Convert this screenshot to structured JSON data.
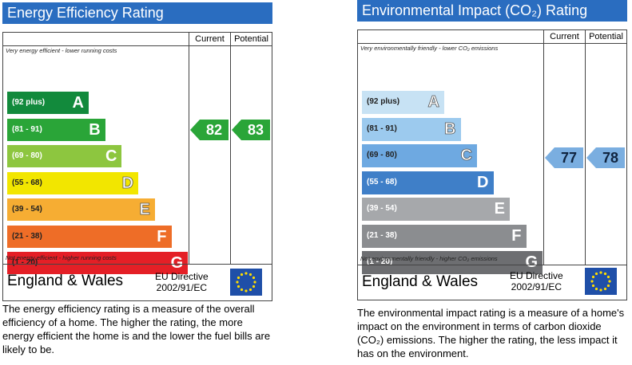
{
  "chart_data": [
    {
      "type": "bar",
      "title": "Energy Efficiency Rating",
      "column_headers": [
        "Current",
        "Potential"
      ],
      "top_note": "Very energy efficient - lower running costs",
      "bottom_note": "Not energy efficient - higher running costs",
      "bands": [
        {
          "range": "(92 plus)",
          "letter": "A",
          "color": "#128a3c"
        },
        {
          "range": "(81 - 91)",
          "letter": "B",
          "color": "#2aa538"
        },
        {
          "range": "(69 - 80)",
          "letter": "C",
          "color": "#8dc63f"
        },
        {
          "range": "(55 - 68)",
          "letter": "D",
          "color": "#f2e600"
        },
        {
          "range": "(39 - 54)",
          "letter": "E",
          "color": "#f6ad33"
        },
        {
          "range": "(21 - 38)",
          "letter": "F",
          "color": "#ee6d27"
        },
        {
          "range": "(1 - 20)",
          "letter": "G",
          "color": "#e41f26"
        }
      ],
      "current": {
        "value": "82",
        "band": "B",
        "color": "#2aa538"
      },
      "potential": {
        "value": "83",
        "band": "B",
        "color": "#2aa538"
      },
      "footer": {
        "country": "England & Wales",
        "directive_line1": "EU Directive",
        "directive_line2": "2002/91/EC"
      },
      "description": "The energy efficiency rating is a measure of the overall efficiency of a home. The higher the rating, the more energy efficient the home is and the lower the fuel bills are likely to be."
    },
    {
      "type": "bar",
      "title": "Environmental Impact (CO₂) Rating",
      "column_headers": [
        "Current",
        "Potential"
      ],
      "top_note": "Very environmentally friendly - lower CO₂ emissions",
      "bottom_note": "Not environmentally friendly - higher CO₂ emissions",
      "bands": [
        {
          "range": "(92 plus)",
          "letter": "A",
          "color": "#c7e2f4"
        },
        {
          "range": "(81 - 91)",
          "letter": "B",
          "color": "#9ccaee"
        },
        {
          "range": "(69 - 80)",
          "letter": "C",
          "color": "#6ea9e1"
        },
        {
          "range": "(55 - 68)",
          "letter": "D",
          "color": "#3f7fc8"
        },
        {
          "range": "(39 - 54)",
          "letter": "E",
          "color": "#a6a8ab"
        },
        {
          "range": "(21 - 38)",
          "letter": "F",
          "color": "#8b8d90"
        },
        {
          "range": "(1 - 20)",
          "letter": "G",
          "color": "#6d6e71"
        }
      ],
      "current": {
        "value": "77",
        "band": "C",
        "color": "#7aaee0"
      },
      "potential": {
        "value": "78",
        "band": "C",
        "color": "#7aaee0"
      },
      "footer": {
        "country": "England & Wales",
        "directive_line1": "EU Directive",
        "directive_line2": "2002/91/EC"
      },
      "description": "The environmental impact rating is a measure of a home's impact on the environment in terms of carbon dioxide (CO₂) emissions. The higher the rating, the less impact it has on the environment."
    }
  ]
}
